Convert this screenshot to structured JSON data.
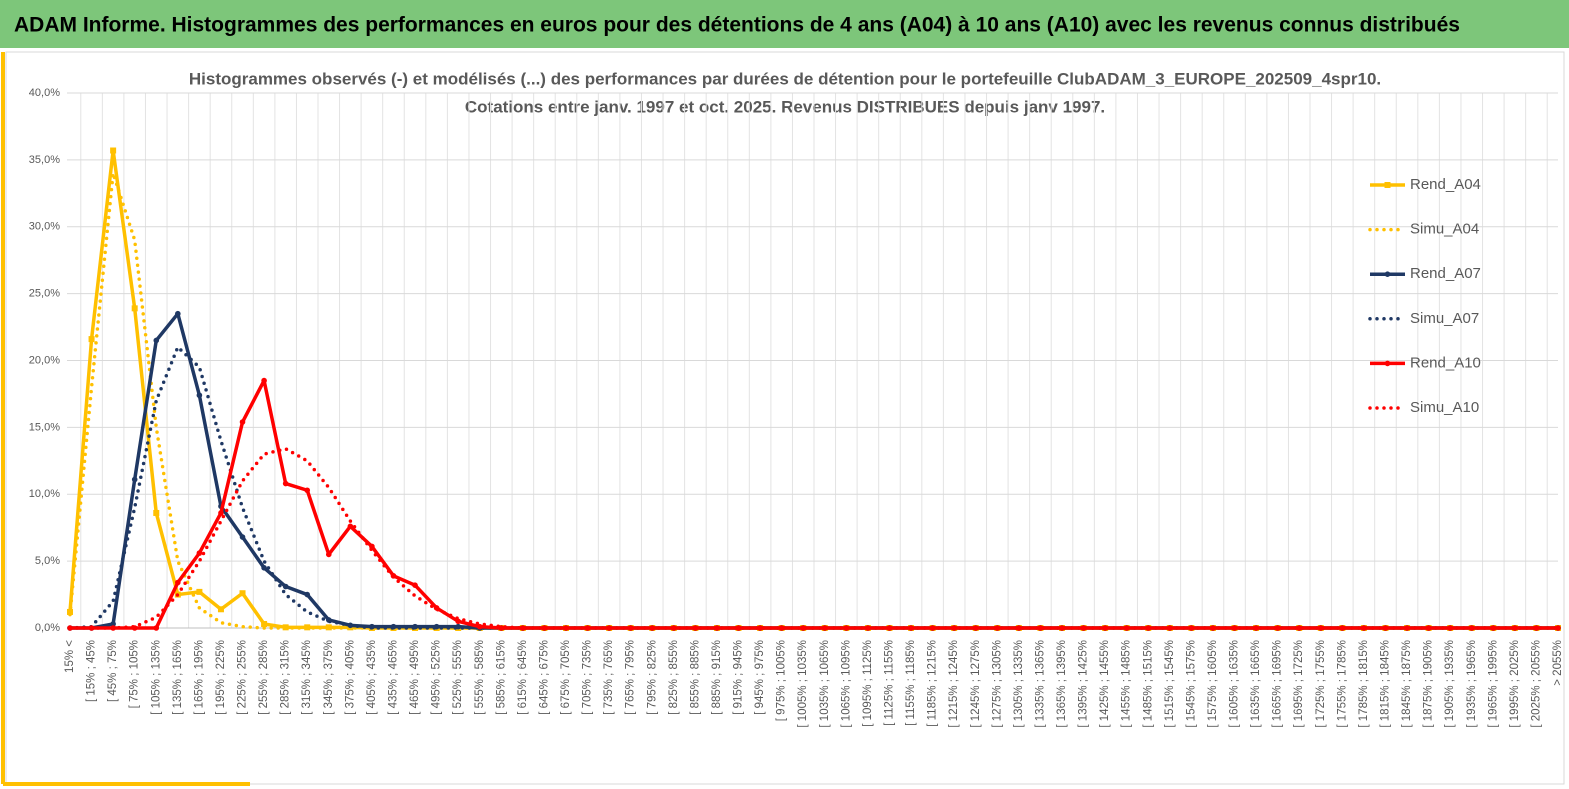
{
  "header": {
    "title": "ADAM Informe. Histogrammes des performances en euros pour des détentions de 4 ans (A04) à 10 ans (A10) avec les revenus connus distribués"
  },
  "chart_data": {
    "type": "line",
    "title": [
      "Histogrammes observés (-) et modélisés (...) des performances par durées de détention pour le portefeuille ClubADAM_3_EUROPE_202509_4spr10.",
      "Cotations entre janv. 1997 et oct. 2025. Revenus DISTRIBUES depuis janv 1997."
    ],
    "categories": [
      "15% <",
      "[ 15% ; 45%",
      "[ 45% ; 75%",
      "[ 75% ; 105%",
      "[ 105% ; 135%",
      "[ 135% ; 165%",
      "[ 165% ; 195%",
      "[ 195% ; 225%",
      "[ 225% ; 255%",
      "[ 255% ; 285%",
      "[ 285% ; 315%",
      "[ 315% ; 345%",
      "[ 345% ; 375%",
      "[ 375% ; 405%",
      "[ 405% ; 435%",
      "[ 435% ; 465%",
      "[ 465% ; 495%",
      "[ 495% ; 525%",
      "[ 525% ; 555%",
      "[ 555% ; 585%",
      "[ 585% ; 615%",
      "[ 615% ; 645%",
      "[ 645% ; 675%",
      "[ 675% ; 705%",
      "[ 705% ; 735%",
      "[ 735% ; 765%",
      "[ 765% ; 795%",
      "[ 795% ; 825%",
      "[ 825% ; 855%",
      "[ 855% ; 885%",
      "[ 885% ; 915%",
      "[ 915% ; 945%",
      "[ 945% ; 975%",
      "[ 975% ; 1005%",
      "[ 1005% ; 1035%",
      "[ 1035% ; 1065%",
      "[ 1065% ; 1095%",
      "[ 1095% ; 1125%",
      "[ 1125% ; 1155%",
      "[ 1155% ; 1185%",
      "[ 1185% ; 1215%",
      "[ 1215% ; 1245%",
      "[ 1245% ; 1275%",
      "[ 1275% ; 1305%",
      "[ 1305% ; 1335%",
      "[ 1335% ; 1365%",
      "[ 1365% ; 1395%",
      "[ 1395% ; 1425%",
      "[ 1425% ; 1455%",
      "[ 1455% ; 1485%",
      "[ 1485% ; 1515%",
      "[ 1515% ; 1545%",
      "[ 1545% ; 1575%",
      "[ 1575% ; 1605%",
      "[ 1605% ; 1635%",
      "[ 1635% ; 1665%",
      "[ 1665% ; 1695%",
      "[ 1695% ; 1725%",
      "[ 1725% ; 1755%",
      "[ 1755% ; 1785%",
      "[ 1785% ; 1815%",
      "[ 1815% ; 1845%",
      "[ 1845% ; 1875%",
      "[ 1875% ; 1905%",
      "[ 1905% ; 1935%",
      "[ 1935% ; 1965%",
      "[ 1965% ; 1995%",
      "[ 1995% ; 2025%",
      "[ 2025% ; 2055%",
      "> 2055%"
    ],
    "series": [
      {
        "name": "Rend_A04",
        "color": "#ffc000",
        "style": "solid",
        "marker": "square",
        "values": [
          1.2,
          21.6,
          35.7,
          23.9,
          8.6,
          2.5,
          2.7,
          1.4,
          2.6,
          0.3,
          0.05,
          0.05,
          0.05,
          0.05,
          0,
          0,
          0,
          0,
          0,
          0,
          0,
          0,
          0,
          0,
          0,
          0,
          0,
          0,
          0,
          0,
          0,
          0,
          0,
          0,
          0,
          0,
          0,
          0,
          0,
          0,
          0,
          0,
          0,
          0,
          0,
          0,
          0,
          0,
          0,
          0,
          0,
          0,
          0,
          0,
          0,
          0,
          0,
          0,
          0,
          0,
          0,
          0,
          0,
          0,
          0,
          0,
          0,
          0,
          0,
          0
        ]
      },
      {
        "name": "Simu_A04",
        "color": "#ffc000",
        "style": "dotted",
        "marker": "none",
        "values": [
          1,
          18,
          34,
          29,
          15,
          5,
          1.5,
          0.4,
          0.1,
          0,
          0,
          0,
          0,
          0,
          0,
          0,
          0,
          0,
          0,
          0,
          0,
          0,
          0,
          0,
          0,
          0,
          0,
          0,
          0,
          0,
          0,
          0,
          0,
          0,
          0,
          0,
          0,
          0,
          0,
          0,
          0,
          0,
          0,
          0,
          0,
          0,
          0,
          0,
          0,
          0,
          0,
          0,
          0,
          0,
          0,
          0,
          0,
          0,
          0,
          0,
          0,
          0,
          0,
          0,
          0,
          0,
          0,
          0,
          0,
          0
        ]
      },
      {
        "name": "Rend_A07",
        "color": "#1f3864",
        "style": "solid",
        "marker": "circle",
        "values": [
          0,
          0,
          0.3,
          11.1,
          21.5,
          23.5,
          17.4,
          9.1,
          6.8,
          4.5,
          3.1,
          2.5,
          0.6,
          0.2,
          0.1,
          0.1,
          0.1,
          0.1,
          0.1,
          0,
          0,
          0,
          0,
          0,
          0,
          0,
          0,
          0,
          0,
          0,
          0,
          0,
          0,
          0,
          0,
          0,
          0,
          0,
          0,
          0,
          0,
          0,
          0,
          0,
          0,
          0,
          0,
          0,
          0,
          0,
          0,
          0,
          0,
          0,
          0,
          0,
          0,
          0,
          0,
          0,
          0,
          0,
          0,
          0,
          0,
          0,
          0,
          0,
          0,
          0
        ]
      },
      {
        "name": "Simu_A07",
        "color": "#1f3864",
        "style": "dotted",
        "marker": "none",
        "values": [
          0,
          0.1,
          2,
          9,
          17,
          21,
          19.5,
          14,
          9,
          5,
          2.5,
          1.2,
          0.5,
          0.2,
          0,
          0,
          0,
          0,
          0,
          0,
          0,
          0,
          0,
          0,
          0,
          0,
          0,
          0,
          0,
          0,
          0,
          0,
          0,
          0,
          0,
          0,
          0,
          0,
          0,
          0,
          0,
          0,
          0,
          0,
          0,
          0,
          0,
          0,
          0,
          0,
          0,
          0,
          0,
          0,
          0,
          0,
          0,
          0,
          0,
          0,
          0,
          0,
          0,
          0,
          0,
          0,
          0,
          0,
          0,
          0
        ]
      },
      {
        "name": "Rend_A10",
        "color": "#ff0000",
        "style": "solid",
        "marker": "circle",
        "values": [
          0,
          0,
          0,
          0,
          0,
          3.4,
          5.6,
          8.6,
          15.4,
          18.5,
          10.8,
          10.3,
          5.5,
          7.6,
          6.1,
          3.9,
          3.2,
          1.5,
          0.5,
          0.1,
          0,
          0,
          0,
          0,
          0,
          0,
          0,
          0,
          0,
          0,
          0,
          0,
          0,
          0,
          0,
          0,
          0,
          0,
          0,
          0,
          0,
          0,
          0,
          0,
          0,
          0,
          0,
          0,
          0,
          0,
          0,
          0,
          0,
          0,
          0,
          0,
          0,
          0,
          0,
          0,
          0,
          0,
          0,
          0,
          0,
          0,
          0,
          0,
          0,
          0
        ]
      },
      {
        "name": "Simu_A10",
        "color": "#ff0000",
        "style": "dotted",
        "marker": "none",
        "values": [
          0,
          0,
          0,
          0.1,
          0.8,
          2.5,
          5,
          8,
          11,
          13,
          13.4,
          12.5,
          10.5,
          8,
          5.8,
          3.8,
          2.4,
          1.4,
          0.7,
          0.3,
          0.1,
          0,
          0,
          0,
          0,
          0,
          0,
          0,
          0,
          0,
          0,
          0,
          0,
          0,
          0,
          0,
          0,
          0,
          0,
          0,
          0,
          0,
          0,
          0,
          0,
          0,
          0,
          0,
          0,
          0,
          0,
          0,
          0,
          0,
          0,
          0,
          0,
          0,
          0,
          0,
          0,
          0,
          0,
          0,
          0,
          0,
          0,
          0,
          0,
          0
        ]
      }
    ],
    "ylim": [
      0,
      40
    ],
    "yticks": [
      {
        "value": 0,
        "label": "0,0%"
      },
      {
        "value": 5,
        "label": "5,0%"
      },
      {
        "value": 10,
        "label": "10,0%"
      },
      {
        "value": 15,
        "label": "15,0%"
      },
      {
        "value": 20,
        "label": "20,0%"
      },
      {
        "value": 25,
        "label": "25,0%"
      },
      {
        "value": 30,
        "label": "30,0%"
      },
      {
        "value": 35,
        "label": "35,0%"
      },
      {
        "value": 40,
        "label": "40,0%"
      }
    ],
    "grid": true,
    "legend": "right"
  }
}
